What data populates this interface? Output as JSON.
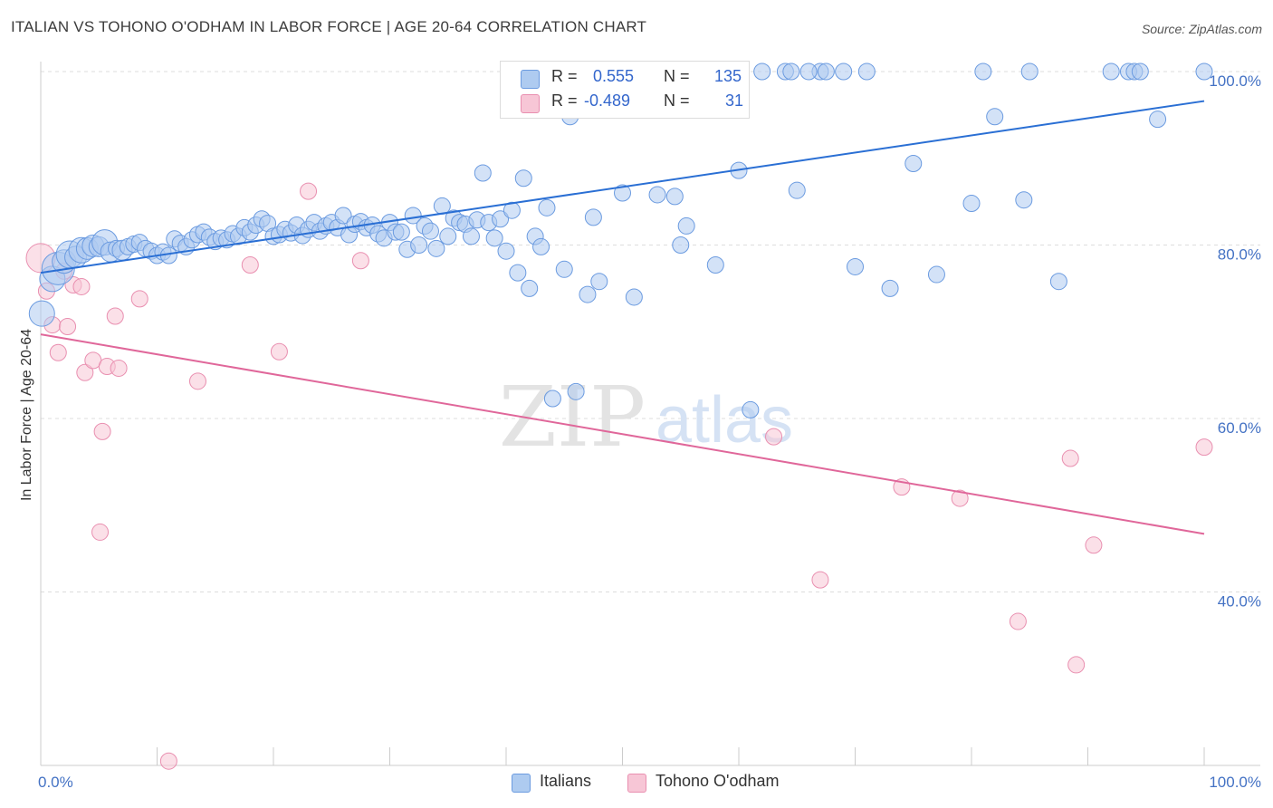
{
  "title": "ITALIAN VS TOHONO O'ODHAM IN LABOR FORCE | AGE 20-64 CORRELATION CHART",
  "source": "Source: ZipAtlas.com",
  "watermark": {
    "zip": "ZIP",
    "atlas": "atlas"
  },
  "legend_top": {
    "italians": {
      "r_label": "R = ",
      "r_value": "0.555",
      "n_label": "N = ",
      "n_value": "135"
    },
    "tohono": {
      "r_label": "R = ",
      "r_value": "-0.489",
      "n_label": "N = ",
      "n_value": "31"
    }
  },
  "legend_bottom": {
    "italians": "Italians",
    "tohono": "Tohono O'odham"
  },
  "colors": {
    "italians_fill": "#aecbf0",
    "italians_stroke": "#6b9be0",
    "italians_line": "#2a6fd4",
    "tohono_fill": "#f7c6d6",
    "tohono_stroke": "#e98fb0",
    "tohono_line": "#e0679a",
    "grid": "#dddddd",
    "tick_text": "#4472c4"
  },
  "chart_data": {
    "type": "scatter",
    "title": "ITALIAN VS TOHONO O'ODHAM IN LABOR FORCE | AGE 20-64 CORRELATION CHART",
    "xlabel": "",
    "ylabel": "In Labor Force | Age 20-64",
    "xlim": [
      0,
      100
    ],
    "ylim": [
      20,
      101
    ],
    "x_tick_labels": [
      "0.0%",
      "100.0%"
    ],
    "y_ticks": [
      40,
      60,
      80,
      100
    ],
    "y_tick_labels": [
      "40.0%",
      "60.0%",
      "80.0%",
      "100.0%"
    ],
    "grid": true,
    "legend_placement": "top-center and bottom",
    "series": [
      {
        "name": "Italians",
        "r": 0.555,
        "n": 135,
        "trend": {
          "x": [
            0,
            100
          ],
          "y": [
            76.8,
            96.6
          ]
        },
        "points": [
          {
            "x": 0.1,
            "y": 72.1,
            "s": 14
          },
          {
            "x": 1.0,
            "y": 76.1,
            "s": 14
          },
          {
            "x": 1.5,
            "y": 77.3,
            "s": 18
          },
          {
            "x": 2.0,
            "y": 78.1,
            "s": 13
          },
          {
            "x": 2.5,
            "y": 78.9,
            "s": 15
          },
          {
            "x": 3.0,
            "y": 78.6,
            "s": 12
          },
          {
            "x": 3.5,
            "y": 79.4,
            "s": 14
          },
          {
            "x": 4.0,
            "y": 79.6,
            "s": 12
          },
          {
            "x": 4.5,
            "y": 79.9,
            "s": 12
          },
          {
            "x": 5.0,
            "y": 79.8,
            "s": 11
          },
          {
            "x": 5.5,
            "y": 80.3,
            "s": 14
          },
          {
            "x": 6.0,
            "y": 79.2,
            "s": 11
          },
          {
            "x": 6.5,
            "y": 79.6,
            "s": 9
          },
          {
            "x": 7.0,
            "y": 79.4,
            "s": 11
          },
          {
            "x": 7.5,
            "y": 79.8,
            "s": 9
          },
          {
            "x": 8.0,
            "y": 80.1,
            "s": 9
          },
          {
            "x": 8.5,
            "y": 80.3,
            "s": 9
          },
          {
            "x": 9.0,
            "y": 79.6,
            "s": 9
          },
          {
            "x": 9.5,
            "y": 79.3,
            "s": 9
          },
          {
            "x": 10.0,
            "y": 78.8,
            "s": 9
          },
          {
            "x": 10.5,
            "y": 79.2,
            "s": 9
          },
          {
            "x": 11.0,
            "y": 78.8,
            "s": 9
          },
          {
            "x": 11.5,
            "y": 80.7,
            "s": 9
          },
          {
            "x": 12.0,
            "y": 80.2,
            "s": 9
          },
          {
            "x": 12.5,
            "y": 79.8,
            "s": 9
          },
          {
            "x": 13.0,
            "y": 80.6,
            "s": 9
          },
          {
            "x": 13.5,
            "y": 81.2,
            "s": 9
          },
          {
            "x": 14.0,
            "y": 81.5,
            "s": 9
          },
          {
            "x": 14.5,
            "y": 80.9,
            "s": 9
          },
          {
            "x": 15.0,
            "y": 80.4,
            "s": 9
          },
          {
            "x": 15.5,
            "y": 80.8,
            "s": 9
          },
          {
            "x": 16.0,
            "y": 80.6,
            "s": 9
          },
          {
            "x": 16.5,
            "y": 81.3,
            "s": 9
          },
          {
            "x": 17.0,
            "y": 81.0,
            "s": 9
          },
          {
            "x": 17.5,
            "y": 82.0,
            "s": 9
          },
          {
            "x": 18.0,
            "y": 81.5,
            "s": 9
          },
          {
            "x": 18.5,
            "y": 82.3,
            "s": 9
          },
          {
            "x": 19.0,
            "y": 83.0,
            "s": 9
          },
          {
            "x": 19.5,
            "y": 82.5,
            "s": 9
          },
          {
            "x": 20.0,
            "y": 81.0,
            "s": 9
          },
          {
            "x": 20.5,
            "y": 81.2,
            "s": 9
          },
          {
            "x": 21.0,
            "y": 81.8,
            "s": 9
          },
          {
            "x": 21.5,
            "y": 81.4,
            "s": 9
          },
          {
            "x": 22.0,
            "y": 82.3,
            "s": 9
          },
          {
            "x": 22.5,
            "y": 81.1,
            "s": 9
          },
          {
            "x": 23.0,
            "y": 81.8,
            "s": 9
          },
          {
            "x": 23.5,
            "y": 82.6,
            "s": 9
          },
          {
            "x": 24.0,
            "y": 81.6,
            "s": 9
          },
          {
            "x": 24.5,
            "y": 82.2,
            "s": 9
          },
          {
            "x": 25.0,
            "y": 82.6,
            "s": 9
          },
          {
            "x": 25.5,
            "y": 82.0,
            "s": 9
          },
          {
            "x": 26.0,
            "y": 83.4,
            "s": 9
          },
          {
            "x": 26.5,
            "y": 81.2,
            "s": 9
          },
          {
            "x": 27.0,
            "y": 82.4,
            "s": 9
          },
          {
            "x": 27.5,
            "y": 82.7,
            "s": 9
          },
          {
            "x": 28.0,
            "y": 82.0,
            "s": 9
          },
          {
            "x": 28.5,
            "y": 82.3,
            "s": 9
          },
          {
            "x": 29.0,
            "y": 81.3,
            "s": 9
          },
          {
            "x": 29.5,
            "y": 80.8,
            "s": 9
          },
          {
            "x": 30.0,
            "y": 82.6,
            "s": 9
          },
          {
            "x": 30.5,
            "y": 81.5,
            "s": 9
          },
          {
            "x": 31.0,
            "y": 81.5,
            "s": 9
          },
          {
            "x": 31.5,
            "y": 79.5,
            "s": 9
          },
          {
            "x": 32.0,
            "y": 83.4,
            "s": 9
          },
          {
            "x": 32.5,
            "y": 80.0,
            "s": 9
          },
          {
            "x": 33.0,
            "y": 82.2,
            "s": 9
          },
          {
            "x": 33.5,
            "y": 81.6,
            "s": 9
          },
          {
            "x": 34.0,
            "y": 79.6,
            "s": 9
          },
          {
            "x": 34.5,
            "y": 84.5,
            "s": 9
          },
          {
            "x": 35.0,
            "y": 81.0,
            "s": 9
          },
          {
            "x": 35.5,
            "y": 83.1,
            "s": 9
          },
          {
            "x": 36.0,
            "y": 82.6,
            "s": 9
          },
          {
            "x": 36.5,
            "y": 82.4,
            "s": 9
          },
          {
            "x": 37.0,
            "y": 81.0,
            "s": 9
          },
          {
            "x": 37.5,
            "y": 82.9,
            "s": 9
          },
          {
            "x": 38.0,
            "y": 88.3,
            "s": 9
          },
          {
            "x": 38.5,
            "y": 82.6,
            "s": 9
          },
          {
            "x": 39.0,
            "y": 80.8,
            "s": 9
          },
          {
            "x": 39.5,
            "y": 83.0,
            "s": 9
          },
          {
            "x": 40.0,
            "y": 79.3,
            "s": 9
          },
          {
            "x": 40.5,
            "y": 84.0,
            "s": 9
          },
          {
            "x": 41.0,
            "y": 76.8,
            "s": 9
          },
          {
            "x": 41.5,
            "y": 87.7,
            "s": 9
          },
          {
            "x": 42.0,
            "y": 75.0,
            "s": 9
          },
          {
            "x": 42.5,
            "y": 81.0,
            "s": 9
          },
          {
            "x": 43.0,
            "y": 79.8,
            "s": 9
          },
          {
            "x": 43.5,
            "y": 84.3,
            "s": 9
          },
          {
            "x": 44.0,
            "y": 62.3,
            "s": 9
          },
          {
            "x": 45.0,
            "y": 77.2,
            "s": 9
          },
          {
            "x": 45.5,
            "y": 94.8,
            "s": 9
          },
          {
            "x": 46.0,
            "y": 63.1,
            "s": 9
          },
          {
            "x": 46.5,
            "y": 100.0,
            "s": 9
          },
          {
            "x": 47.0,
            "y": 74.3,
            "s": 9
          },
          {
            "x": 47.5,
            "y": 83.2,
            "s": 9
          },
          {
            "x": 48.0,
            "y": 75.8,
            "s": 9
          },
          {
            "x": 49.0,
            "y": 100.0,
            "s": 9
          },
          {
            "x": 50.0,
            "y": 86.0,
            "s": 9
          },
          {
            "x": 51.0,
            "y": 74.0,
            "s": 9
          },
          {
            "x": 52.0,
            "y": 100.0,
            "s": 9
          },
          {
            "x": 53.0,
            "y": 85.8,
            "s": 9
          },
          {
            "x": 53.5,
            "y": 100.0,
            "s": 9
          },
          {
            "x": 54.0,
            "y": 100.0,
            "s": 9
          },
          {
            "x": 54.5,
            "y": 85.6,
            "s": 9
          },
          {
            "x": 55.0,
            "y": 80.0,
            "s": 9
          },
          {
            "x": 55.5,
            "y": 82.2,
            "s": 9
          },
          {
            "x": 56.0,
            "y": 100.0,
            "s": 9
          },
          {
            "x": 57.0,
            "y": 100.0,
            "s": 9
          },
          {
            "x": 58.0,
            "y": 77.7,
            "s": 9
          },
          {
            "x": 58.5,
            "y": 100.0,
            "s": 9
          },
          {
            "x": 59.0,
            "y": 100.0,
            "s": 9
          },
          {
            "x": 60.0,
            "y": 88.6,
            "s": 9
          },
          {
            "x": 61.0,
            "y": 61.0,
            "s": 9
          },
          {
            "x": 62.0,
            "y": 100.0,
            "s": 9
          },
          {
            "x": 64.0,
            "y": 100.0,
            "s": 9
          },
          {
            "x": 65.0,
            "y": 86.3,
            "s": 9
          },
          {
            "x": 67.0,
            "y": 100.0,
            "s": 9
          },
          {
            "x": 67.5,
            "y": 100.0,
            "s": 9
          },
          {
            "x": 69.0,
            "y": 100.0,
            "s": 9
          },
          {
            "x": 70.0,
            "y": 77.5,
            "s": 9
          },
          {
            "x": 71.0,
            "y": 100.0,
            "s": 9
          },
          {
            "x": 73.0,
            "y": 75.0,
            "s": 9
          },
          {
            "x": 75.0,
            "y": 89.4,
            "s": 9
          },
          {
            "x": 77.0,
            "y": 76.6,
            "s": 9
          },
          {
            "x": 80.0,
            "y": 84.8,
            "s": 9
          },
          {
            "x": 81.0,
            "y": 100.0,
            "s": 9
          },
          {
            "x": 82.0,
            "y": 94.8,
            "s": 9
          },
          {
            "x": 84.5,
            "y": 85.2,
            "s": 9
          },
          {
            "x": 85.0,
            "y": 100.0,
            "s": 9
          },
          {
            "x": 87.5,
            "y": 75.8,
            "s": 9
          },
          {
            "x": 92.0,
            "y": 100.0,
            "s": 9
          },
          {
            "x": 93.5,
            "y": 100.0,
            "s": 9
          },
          {
            "x": 94.0,
            "y": 100.0,
            "s": 9
          },
          {
            "x": 96.0,
            "y": 94.5,
            "s": 9
          },
          {
            "x": 100.0,
            "y": 100.0,
            "s": 9
          },
          {
            "x": 53.0,
            "y": 100.0,
            "s": 9
          },
          {
            "x": 55.0,
            "y": 100.0,
            "s": 9
          },
          {
            "x": 56.5,
            "y": 100.0,
            "s": 9
          },
          {
            "x": 66.0,
            "y": 100.0,
            "s": 9
          },
          {
            "x": 94.5,
            "y": 100.0,
            "s": 9
          },
          {
            "x": 50.5,
            "y": 100.0,
            "s": 9
          },
          {
            "x": 48.5,
            "y": 100.0,
            "s": 9
          },
          {
            "x": 52.5,
            "y": 100.0,
            "s": 9
          },
          {
            "x": 64.5,
            "y": 100.0,
            "s": 9
          }
        ]
      },
      {
        "name": "Tohono O'odham",
        "r": -0.489,
        "n": 31,
        "trend": {
          "x": [
            0,
            100
          ],
          "y": [
            69.7,
            46.7
          ]
        },
        "points": [
          {
            "x": 0.0,
            "y": 78.5,
            "s": 16
          },
          {
            "x": 0.5,
            "y": 74.7,
            "s": 9
          },
          {
            "x": 1.0,
            "y": 70.8,
            "s": 9
          },
          {
            "x": 1.5,
            "y": 67.6,
            "s": 9
          },
          {
            "x": 2.3,
            "y": 70.6,
            "s": 9
          },
          {
            "x": 2.8,
            "y": 75.4,
            "s": 9
          },
          {
            "x": 3.5,
            "y": 75.2,
            "s": 9
          },
          {
            "x": 3.8,
            "y": 65.3,
            "s": 9
          },
          {
            "x": 4.5,
            "y": 66.7,
            "s": 9
          },
          {
            "x": 5.3,
            "y": 58.5,
            "s": 9
          },
          {
            "x": 5.1,
            "y": 46.9,
            "s": 9
          },
          {
            "x": 5.7,
            "y": 66.0,
            "s": 9
          },
          {
            "x": 6.4,
            "y": 71.8,
            "s": 9
          },
          {
            "x": 6.7,
            "y": 65.8,
            "s": 9
          },
          {
            "x": 8.5,
            "y": 73.8,
            "s": 9
          },
          {
            "x": 11.0,
            "y": 20.5,
            "s": 9
          },
          {
            "x": 13.5,
            "y": 64.3,
            "s": 9
          },
          {
            "x": 18.0,
            "y": 77.7,
            "s": 9
          },
          {
            "x": 20.5,
            "y": 67.7,
            "s": 9
          },
          {
            "x": 23.0,
            "y": 86.2,
            "s": 9
          },
          {
            "x": 27.5,
            "y": 78.2,
            "s": 9
          },
          {
            "x": 63.0,
            "y": 57.9,
            "s": 9
          },
          {
            "x": 67.0,
            "y": 41.4,
            "s": 9
          },
          {
            "x": 74.0,
            "y": 52.1,
            "s": 9
          },
          {
            "x": 79.0,
            "y": 50.8,
            "s": 9
          },
          {
            "x": 84.0,
            "y": 36.6,
            "s": 9
          },
          {
            "x": 88.5,
            "y": 55.4,
            "s": 9
          },
          {
            "x": 89.0,
            "y": 31.6,
            "s": 9
          },
          {
            "x": 90.5,
            "y": 45.4,
            "s": 9
          },
          {
            "x": 100.0,
            "y": 56.7,
            "s": 9
          },
          {
            "x": 2.0,
            "y": 77.0,
            "s": 9
          }
        ]
      }
    ]
  }
}
